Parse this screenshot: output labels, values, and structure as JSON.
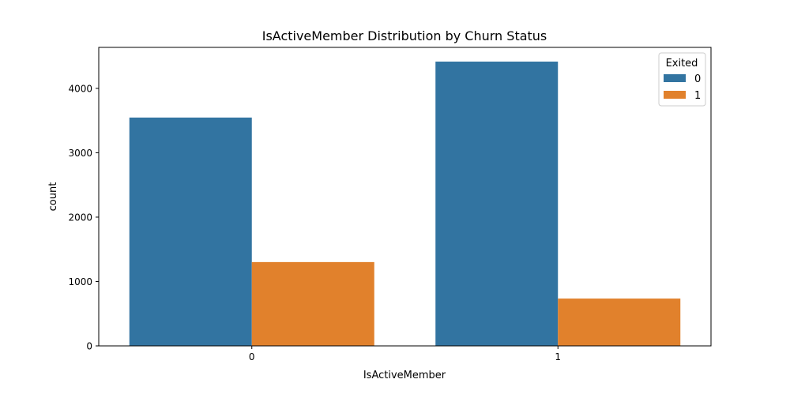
{
  "chart_data": {
    "type": "bar",
    "title": "IsActiveMember Distribution by Churn Status",
    "xlabel": "IsActiveMember",
    "ylabel": "count",
    "categories": [
      "0",
      "1"
    ],
    "series": [
      {
        "name": "0",
        "color": "#3274a1",
        "values": [
          3547,
          4416
        ]
      },
      {
        "name": "1",
        "color": "#e1812c",
        "values": [
          1302,
          735
        ]
      }
    ],
    "ylim": [
      0,
      4637
    ],
    "yticks": [
      0,
      1000,
      2000,
      3000,
      4000
    ],
    "legend": {
      "title": "Exited",
      "placement": "top-right"
    },
    "grid": false
  }
}
